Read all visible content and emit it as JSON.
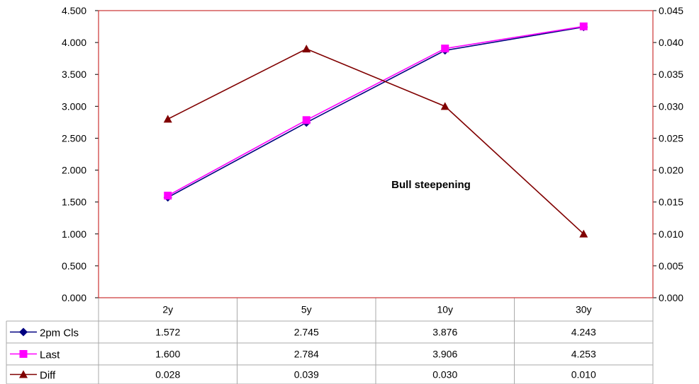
{
  "chart_data": {
    "type": "line",
    "annotation": "Bull steepening",
    "categories": [
      "2y",
      "5y",
      "10y",
      "30y"
    ],
    "y_left": {
      "min": 0,
      "max": 4.5,
      "step": 0.5,
      "decimals": 3
    },
    "y_right": {
      "min": 0,
      "max": 0.045,
      "step": 0.005,
      "decimals": 3
    },
    "series": [
      {
        "name": "2pm Cls",
        "axis": "left",
        "marker": "diamond",
        "color": "#000080",
        "values": [
          1.572,
          2.745,
          3.876,
          4.243
        ],
        "labels": [
          "1.572",
          "2.745",
          "3.876",
          "4.243"
        ]
      },
      {
        "name": "Last",
        "axis": "left",
        "marker": "square",
        "color": "#ff00ff",
        "values": [
          1.6,
          2.784,
          3.906,
          4.253
        ],
        "labels": [
          "1.600",
          "2.784",
          "3.906",
          "4.253"
        ]
      },
      {
        "name": "Diff",
        "axis": "right",
        "marker": "triangle",
        "color": "#800000",
        "values": [
          0.028,
          0.039,
          0.03,
          0.01
        ],
        "labels": [
          "0.028",
          "0.039",
          "0.030",
          "0.010"
        ]
      }
    ],
    "grid": false,
    "plot_border_color": "#cc3333",
    "legend": "data-table",
    "data_table": true
  }
}
